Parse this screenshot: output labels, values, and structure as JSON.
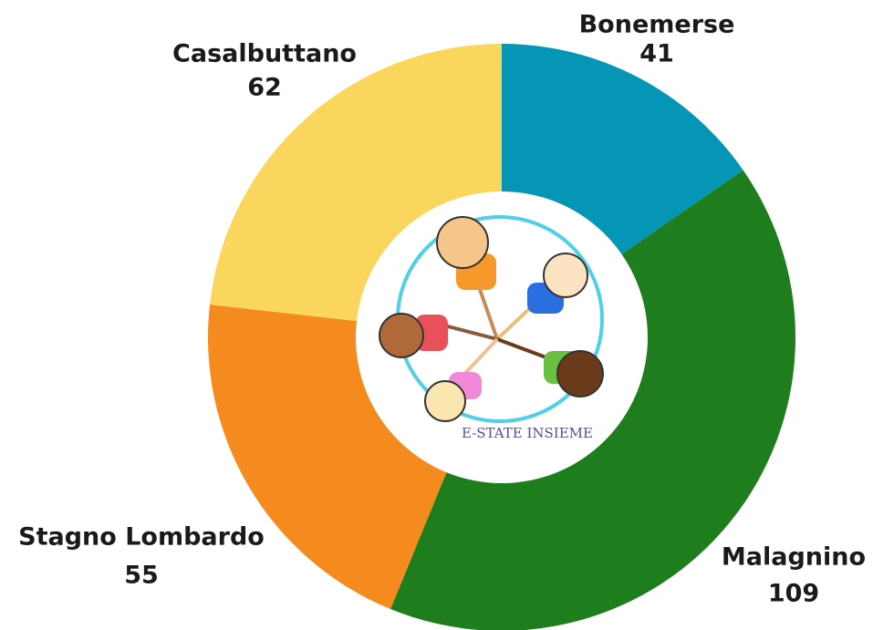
{
  "chart_data": {
    "type": "donut",
    "categories": [
      "Bonemerse",
      "Malagnino",
      "Stagno Lombardo",
      "Casalbuttano"
    ],
    "values": [
      41,
      109,
      55,
      62
    ],
    "colors": [
      "#0596b5",
      "#1e7d1c",
      "#f58a1f",
      "#fad75c"
    ],
    "center_label": "E-STATE INSIEME"
  }
}
